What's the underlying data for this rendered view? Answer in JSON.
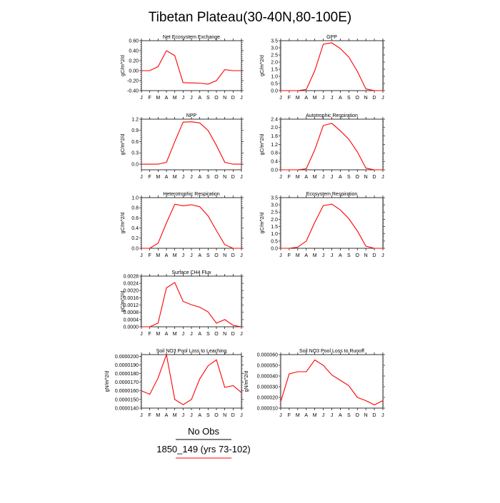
{
  "title": "Tibetan Plateau(30-40N,80-100E)",
  "months": [
    "J",
    "F",
    "M",
    "A",
    "M",
    "J",
    "J",
    "A",
    "S",
    "O",
    "N",
    "D",
    "J"
  ],
  "legend": {
    "obs_label": "No Obs",
    "model_label": "1850_149 (yrs 73-102)",
    "obs_line_color": "#000000",
    "model_line_color": "#ff0000"
  },
  "series_color": "#ff0000",
  "chart_data": [
    {
      "type": "line",
      "title": "Net Ecosystem Exchange",
      "ylabel": "gC/m^2/d",
      "ylim": [
        -0.4,
        0.6
      ],
      "yticks": [
        -0.4,
        -0.2,
        0.0,
        0.2,
        0.4,
        0.6
      ],
      "ytick_labels": [
        "-0.40",
        "-0.20",
        "0.00",
        "0.20",
        "0.40",
        "0.60"
      ],
      "values": [
        0.0,
        0.0,
        0.08,
        0.4,
        0.3,
        -0.24,
        -0.245,
        -0.25,
        -0.27,
        -0.2,
        0.02,
        0.0,
        0.0
      ]
    },
    {
      "type": "line",
      "title": "GPP",
      "ylabel": "gC/m^2/d",
      "ylim": [
        0.0,
        3.5
      ],
      "yticks": [
        0.0,
        0.5,
        1.0,
        1.5,
        2.0,
        2.5,
        3.0,
        3.5
      ],
      "ytick_labels": [
        "0.0",
        "0.5",
        "1.0",
        "1.5",
        "2.0",
        "2.5",
        "3.0",
        "3.5"
      ],
      "values": [
        0.0,
        0.0,
        0.0,
        0.08,
        1.4,
        3.25,
        3.35,
        2.95,
        2.35,
        1.35,
        0.12,
        0.0,
        0.0
      ]
    },
    {
      "type": "line",
      "title": "NPP",
      "ylabel": "gC/m^2/d",
      "ylim": [
        -0.15,
        1.2
      ],
      "yticks": [
        0.0,
        0.3,
        0.6,
        0.9,
        1.2
      ],
      "ytick_labels": [
        "0.0",
        "0.3",
        "0.6",
        "0.9",
        "1.2"
      ],
      "values": [
        0.0,
        0.0,
        0.0,
        0.05,
        0.6,
        1.12,
        1.13,
        1.1,
        0.9,
        0.5,
        0.05,
        0.0,
        0.0
      ]
    },
    {
      "type": "line",
      "title": "Autotrophic Respiration",
      "ylabel": "gC/m^2/d",
      "ylim": [
        0.0,
        2.4
      ],
      "yticks": [
        0.0,
        0.4,
        0.8,
        1.2,
        1.6,
        2.0,
        2.4
      ],
      "ytick_labels": [
        "0.0",
        "0.4",
        "0.8",
        "1.2",
        "1.6",
        "2.0",
        "2.4"
      ],
      "values": [
        0.0,
        0.0,
        0.0,
        0.05,
        0.95,
        2.1,
        2.2,
        1.85,
        1.45,
        0.85,
        0.08,
        0.0,
        0.0
      ]
    },
    {
      "type": "line",
      "title": "Heterotrophic Respiration",
      "ylabel": "gC/m^2/d",
      "ylim": [
        0.0,
        1.0
      ],
      "yticks": [
        0.0,
        0.2,
        0.4,
        0.6,
        0.8,
        1.0
      ],
      "ytick_labels": [
        "0.0",
        "0.2",
        "0.4",
        "0.6",
        "0.8",
        "1.0"
      ],
      "values": [
        0.0,
        0.0,
        0.1,
        0.5,
        0.87,
        0.84,
        0.86,
        0.82,
        0.64,
        0.35,
        0.07,
        0.0,
        0.0
      ]
    },
    {
      "type": "line",
      "title": "Ecosystem Respiration",
      "ylabel": "gC/m^2/d",
      "ylim": [
        0.0,
        3.5
      ],
      "yticks": [
        0.0,
        0.5,
        1.0,
        1.5,
        2.0,
        2.5,
        3.0,
        3.5
      ],
      "ytick_labels": [
        "0.0",
        "0.5",
        "1.0",
        "1.5",
        "2.0",
        "2.5",
        "3.0",
        "3.5"
      ],
      "values": [
        0.0,
        0.0,
        0.08,
        0.5,
        1.8,
        2.95,
        3.05,
        2.65,
        2.05,
        1.2,
        0.15,
        0.0,
        0.0
      ]
    },
    {
      "type": "line",
      "title": "Surface CH4 Flux",
      "ylabel": "gC/m^2/d",
      "ylim": [
        0.0,
        0.0028
      ],
      "yticks": [
        0.0,
        0.0004,
        0.0008,
        0.0012,
        0.0016,
        0.002,
        0.0024,
        0.0028
      ],
      "ytick_labels": [
        "0.0000",
        "0.0004",
        "0.0008",
        "0.0012",
        "0.0016",
        "0.0020",
        "0.0024",
        "0.0028"
      ],
      "values": [
        0.0,
        0.0,
        0.0002,
        0.00215,
        0.00245,
        0.0014,
        0.00122,
        0.00108,
        0.00082,
        0.0002,
        0.0004,
        8e-05,
        0.0
      ]
    },
    {
      "type": "line",
      "title": "Soil NO3 Pool Loss to Leaching",
      "ylabel": "gN/m^2/d",
      "ylim": [
        1.4e-05,
        2.02e-05
      ],
      "yticks": [
        1.4e-05,
        1.5e-05,
        1.6e-05,
        1.7e-05,
        1.8e-05,
        1.9e-05,
        2e-05
      ],
      "ytick_labels": [
        "0.0000140",
        "0.0000150",
        "0.0000160",
        "0.0000170",
        "0.0000180",
        "0.0000190",
        "0.0000200"
      ],
      "values": [
        1.6e-05,
        1.56e-05,
        1.75e-05,
        2.02e-05,
        1.5e-05,
        1.44e-05,
        1.5e-05,
        1.74e-05,
        1.89e-05,
        1.96e-05,
        1.64e-05,
        1.66e-05,
        1.58e-05
      ]
    },
    {
      "type": "line",
      "title": "Soil NO3 Pool Loss to Runoff",
      "ylabel": "gN/m^2/d",
      "ylim": [
        1e-05,
        6e-05
      ],
      "yticks": [
        1e-05,
        2e-05,
        3e-05,
        4e-05,
        5e-05,
        6e-05
      ],
      "ytick_labels": [
        "0.000010",
        "0.000020",
        "0.000030",
        "0.000040",
        "0.000050",
        "0.000060"
      ],
      "values": [
        1.6e-05,
        4.2e-05,
        4.4e-05,
        4.4e-05,
        5.5e-05,
        5e-05,
        4.1e-05,
        3.6e-05,
        3.1e-05,
        2e-05,
        1.7e-05,
        1.3e-05,
        1.7e-05
      ]
    }
  ]
}
